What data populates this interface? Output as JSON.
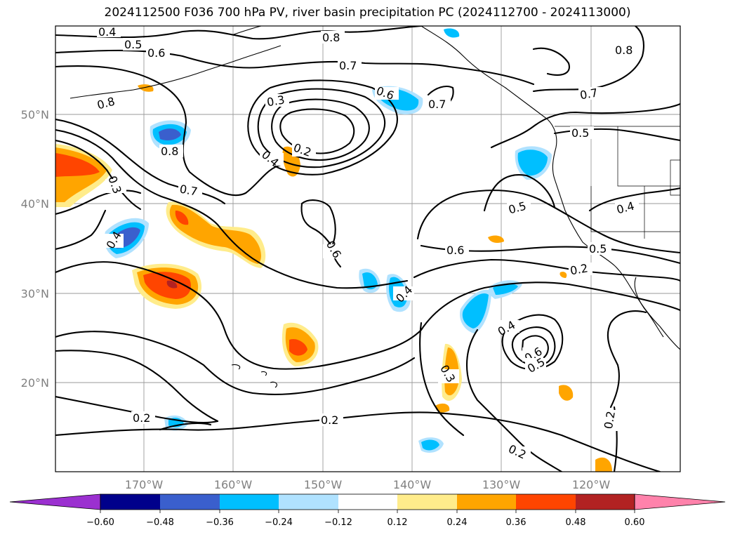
{
  "title": "2024112500 F036 700 hPa PV, river basin precipitation PC (2024112700 - 2024113000)",
  "lat_labels": [
    "50°N",
    "40°N",
    "30°N",
    "20°N"
  ],
  "lon_labels": [
    "170°W",
    "160°W",
    "150°W",
    "140°W",
    "130°W",
    "120°W"
  ],
  "contour_labels": [
    "0.4",
    "0.5",
    "0.6",
    "0.8",
    "0.7",
    "0.8",
    "0.8",
    "0.3",
    "0.6",
    "0.7",
    "0.7",
    "0.8",
    "0.2",
    "0.4",
    "0.3",
    "0.7",
    "0.5",
    "0.4",
    "0.5",
    "0.4",
    "0.6",
    "0.6",
    "0.5",
    "0.2",
    "0.4",
    "0.4",
    "0.6",
    "0.5",
    "0.3",
    "0.2",
    "0.2",
    "0.2",
    "0.2"
  ],
  "colorbar": {
    "colors": [
      "#9b30d0",
      "#00008b",
      "#3a5fcd",
      "#00bfff",
      "#b0e2ff",
      "#ffffff",
      "#ffec8b",
      "#ffa500",
      "#ff4500",
      "#b22222",
      "#ff82ab"
    ],
    "tick_labels": [
      "−0.60",
      "−0.48",
      "−0.36",
      "−0.24",
      "−0.12",
      "0.12",
      "0.24",
      "0.36",
      "0.48",
      "0.60"
    ]
  },
  "colors": {
    "grid": "#9a9a9a",
    "contour": "#000000",
    "tick_label": "#808080"
  }
}
